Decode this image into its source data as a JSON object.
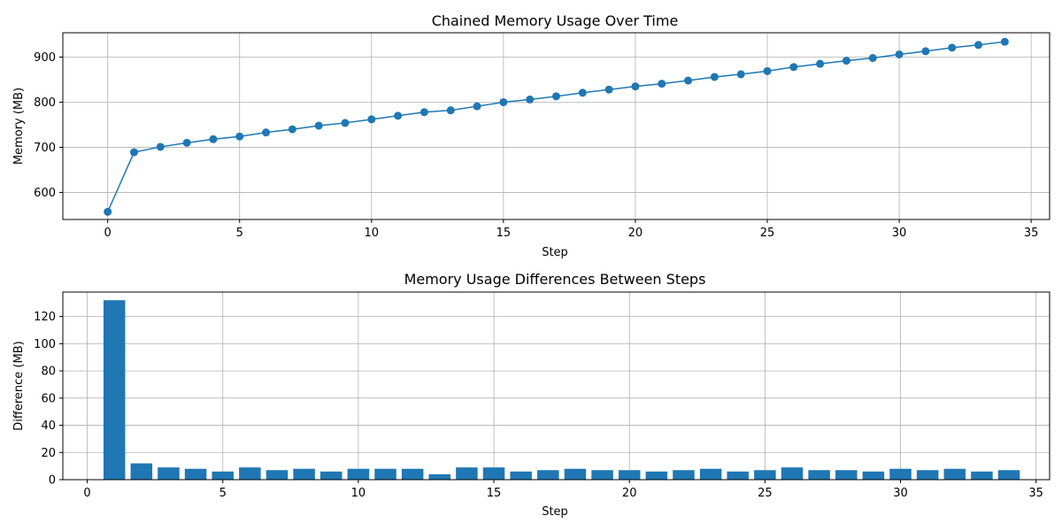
{
  "colors": {
    "series": "#1f77b4",
    "grid": "#b0b0b0"
  },
  "chart_data": [
    {
      "type": "line",
      "title": "Chained Memory Usage Over Time",
      "xlabel": "Step",
      "ylabel": "Memory (MB)",
      "grid": true,
      "marker": "circle",
      "xlim": [
        -1.7,
        35.7
      ],
      "ylim": [
        540,
        954
      ],
      "xticks": [
        0,
        5,
        10,
        15,
        20,
        25,
        30,
        35
      ],
      "yticks": [
        600,
        700,
        800,
        900
      ],
      "x": [
        0,
        1,
        2,
        3,
        4,
        5,
        6,
        7,
        8,
        9,
        10,
        11,
        12,
        13,
        14,
        15,
        16,
        17,
        18,
        19,
        20,
        21,
        22,
        23,
        24,
        25,
        26,
        27,
        28,
        29,
        30,
        31,
        32,
        33,
        34
      ],
      "values": [
        557,
        689,
        701,
        710,
        718,
        724,
        733,
        740,
        748,
        754,
        762,
        770,
        778,
        782,
        791,
        800,
        806,
        813,
        821,
        828,
        835,
        841,
        848,
        856,
        862,
        869,
        878,
        885,
        892,
        898,
        906,
        913,
        921,
        927,
        934
      ]
    },
    {
      "type": "bar",
      "title": "Memory Usage Differences Between Steps",
      "xlabel": "Step",
      "ylabel": "Difference (MB)",
      "grid": true,
      "xlim": [
        -0.9,
        35.5
      ],
      "ylim": [
        0,
        138
      ],
      "xticks": [
        0,
        5,
        10,
        15,
        20,
        25,
        30,
        35
      ],
      "yticks": [
        0,
        20,
        40,
        60,
        80,
        100,
        120
      ],
      "x": [
        1,
        2,
        3,
        4,
        5,
        6,
        7,
        8,
        9,
        10,
        11,
        12,
        13,
        14,
        15,
        16,
        17,
        18,
        19,
        20,
        21,
        22,
        23,
        24,
        25,
        26,
        27,
        28,
        29,
        30,
        31,
        32,
        33,
        34
      ],
      "values": [
        132,
        12,
        9,
        8,
        6,
        9,
        7,
        8,
        6,
        8,
        8,
        8,
        4,
        9,
        9,
        6,
        7,
        8,
        7,
        7,
        6,
        7,
        8,
        6,
        7,
        9,
        7,
        7,
        6,
        8,
        7,
        8,
        6,
        7
      ]
    }
  ]
}
